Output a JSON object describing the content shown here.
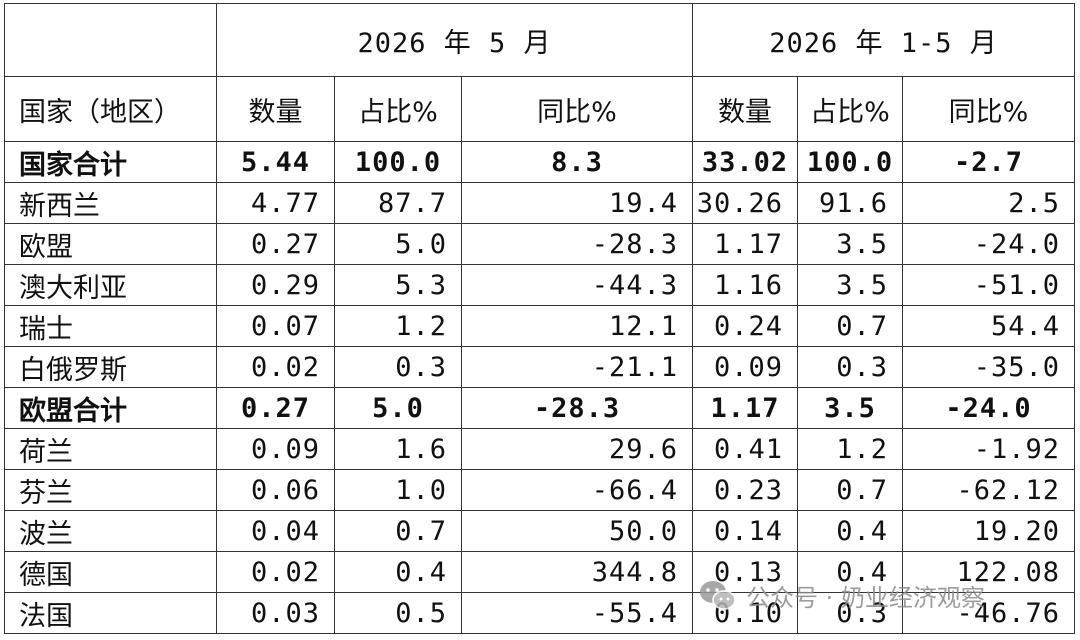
{
  "period_may": "2026 年 5 月",
  "period_ytd": "2026 年 1-5 月",
  "headers": {
    "country": "国家（地区）",
    "qty": "数量",
    "share": "占比%",
    "yoy": "同比%"
  },
  "rows": [
    {
      "name": "国家合计",
      "bold": true,
      "m_qty": "5.44",
      "m_share": "100.0",
      "m_yoy": "8.3",
      "y_qty": "33.02",
      "y_share": "100.0",
      "y_yoy": "-2.7"
    },
    {
      "name": "新西兰",
      "bold": false,
      "m_qty": "4.77",
      "m_share": "87.7",
      "m_yoy": "19.4",
      "y_qty": "30.26",
      "y_share": "91.6",
      "y_yoy": "2.5"
    },
    {
      "name": "欧盟",
      "bold": false,
      "m_qty": "0.27",
      "m_share": "5.0",
      "m_yoy": "-28.3",
      "y_qty": "1.17",
      "y_share": "3.5",
      "y_yoy": "-24.0"
    },
    {
      "name": "澳大利亚",
      "bold": false,
      "m_qty": "0.29",
      "m_share": "5.3",
      "m_yoy": "-44.3",
      "y_qty": "1.16",
      "y_share": "3.5",
      "y_yoy": "-51.0"
    },
    {
      "name": "瑞士",
      "bold": false,
      "m_qty": "0.07",
      "m_share": "1.2",
      "m_yoy": "12.1",
      "y_qty": "0.24",
      "y_share": "0.7",
      "y_yoy": "54.4"
    },
    {
      "name": "白俄罗斯",
      "bold": false,
      "m_qty": "0.02",
      "m_share": "0.3",
      "m_yoy": "-21.1",
      "y_qty": "0.09",
      "y_share": "0.3",
      "y_yoy": "-35.0"
    },
    {
      "name": "欧盟合计",
      "bold": true,
      "m_qty": "0.27",
      "m_share": "5.0",
      "m_yoy": "-28.3",
      "y_qty": "1.17",
      "y_share": "3.5",
      "y_yoy": "-24.0"
    },
    {
      "name": "荷兰",
      "bold": false,
      "m_qty": "0.09",
      "m_share": "1.6",
      "m_yoy": "29.6",
      "y_qty": "0.41",
      "y_share": "1.2",
      "y_yoy": "-1.92"
    },
    {
      "name": "芬兰",
      "bold": false,
      "m_qty": "0.06",
      "m_share": "1.0",
      "m_yoy": "-66.4",
      "y_qty": "0.23",
      "y_share": "0.7",
      "y_yoy": "-62.12"
    },
    {
      "name": "波兰",
      "bold": false,
      "m_qty": "0.04",
      "m_share": "0.7",
      "m_yoy": "50.0",
      "y_qty": "0.14",
      "y_share": "0.4",
      "y_yoy": "19.20"
    },
    {
      "name": "德国",
      "bold": false,
      "m_qty": "0.02",
      "m_share": "0.4",
      "m_yoy": "344.8",
      "y_qty": "0.13",
      "y_share": "0.4",
      "y_yoy": "122.08"
    },
    {
      "name": "法国",
      "bold": false,
      "m_qty": "0.03",
      "m_share": "0.5",
      "m_yoy": "-55.4",
      "y_qty": "0.10",
      "y_share": "0.3",
      "y_yoy": "-46.76"
    }
  ],
  "watermark": {
    "text": "公众号 · 奶业经济观察",
    "icon": "wechat-icon"
  }
}
